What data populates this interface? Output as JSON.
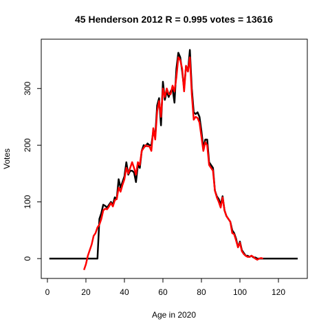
{
  "chart_data": {
    "type": "line",
    "title": "45 Henderson 2012 R = 0.995 votes = 13616",
    "xlabel": "Age in 2020",
    "ylabel": "Votes",
    "xlim": [
      -3.2,
      135
    ],
    "ylim": [
      -35,
      387
    ],
    "xticks": [
      0,
      20,
      40,
      60,
      80,
      100,
      120
    ],
    "yticks": [
      0,
      100,
      200,
      300
    ],
    "series": [
      {
        "color": "#000000",
        "x": [
          1,
          2,
          3,
          4,
          5,
          6,
          7,
          8,
          9,
          10,
          11,
          12,
          13,
          14,
          15,
          16,
          17,
          18,
          19,
          20,
          21,
          22,
          23,
          24,
          25,
          26,
          27,
          28,
          29,
          30,
          31,
          32,
          33,
          34,
          35,
          36,
          37,
          38,
          39,
          40,
          41,
          42,
          43,
          44,
          45,
          46,
          47,
          48,
          49,
          50,
          51,
          52,
          53,
          54,
          55,
          56,
          57,
          58,
          59,
          60,
          61,
          62,
          63,
          64,
          65,
          66,
          67,
          68,
          69,
          70,
          71,
          72,
          73,
          74,
          75,
          76,
          77,
          78,
          79,
          80,
          81,
          82,
          83,
          84,
          85,
          86,
          87,
          88,
          89,
          90,
          91,
          92,
          93,
          94,
          95,
          96,
          97,
          98,
          99,
          100,
          101,
          102,
          103,
          104,
          105,
          106,
          107,
          108,
          109,
          110,
          111,
          112,
          113,
          114,
          115,
          116,
          117,
          118,
          119,
          120,
          121,
          122,
          123,
          124,
          125,
          126,
          127,
          128,
          129,
          130
        ],
        "values": [
          0,
          0,
          0,
          0,
          0,
          0,
          0,
          0,
          0,
          0,
          0,
          0,
          0,
          0,
          0,
          0,
          0,
          0,
          0,
          0,
          0,
          0,
          0,
          0,
          0,
          0,
          70,
          80,
          95,
          93,
          90,
          95,
          100,
          95,
          108,
          105,
          140,
          125,
          135,
          145,
          170,
          148,
          155,
          155,
          152,
          135,
          165,
          160,
          190,
          200,
          198,
          203,
          200,
          200,
          225,
          215,
          270,
          283,
          235,
          312,
          280,
          295,
          285,
          295,
          300,
          275,
          335,
          363,
          355,
          330,
          300,
          340,
          330,
          368,
          300,
          258,
          255,
          258,
          250,
          225,
          195,
          210,
          210,
          170,
          165,
          160,
          120,
          110,
          105,
          95,
          110,
          85,
          75,
          70,
          65,
          50,
          45,
          35,
          20,
          30,
          15,
          10,
          5,
          5,
          3,
          5,
          2,
          2,
          0,
          0,
          0,
          0,
          0,
          0,
          0,
          0,
          0,
          0,
          0,
          0,
          0,
          0,
          0,
          0,
          0,
          0,
          0,
          0,
          0,
          0
        ]
      },
      {
        "color": "#ff0000",
        "x": [
          19,
          20,
          21,
          22,
          23,
          24,
          25,
          26,
          27,
          28,
          29,
          30,
          31,
          32,
          33,
          34,
          35,
          36,
          37,
          38,
          39,
          40,
          41,
          42,
          43,
          44,
          45,
          46,
          47,
          48,
          49,
          50,
          51,
          52,
          53,
          54,
          55,
          56,
          57,
          58,
          59,
          60,
          61,
          62,
          63,
          64,
          65,
          66,
          67,
          68,
          69,
          70,
          71,
          72,
          73,
          74,
          75,
          76,
          77,
          78,
          79,
          80,
          81,
          82,
          83,
          84,
          85,
          86,
          87,
          88,
          89,
          90,
          91,
          92,
          93,
          94,
          95,
          96,
          97,
          98,
          99,
          100,
          101,
          102,
          103,
          104,
          105,
          106,
          107,
          108,
          109,
          110,
          111,
          112
        ],
        "values": [
          -20,
          -10,
          5,
          15,
          25,
          40,
          45,
          55,
          60,
          70,
          85,
          88,
          87,
          92,
          98,
          92,
          103,
          105,
          125,
          118,
          130,
          140,
          160,
          150,
          160,
          170,
          160,
          148,
          170,
          165,
          190,
          195,
          200,
          198,
          198,
          190,
          230,
          210,
          260,
          278,
          250,
          300,
          285,
          300,
          290,
          290,
          305,
          295,
          320,
          355,
          350,
          335,
          295,
          340,
          330,
          355,
          290,
          245,
          250,
          248,
          240,
          215,
          190,
          205,
          200,
          165,
          160,
          155,
          120,
          108,
          100,
          90,
          108,
          85,
          75,
          70,
          65,
          45,
          43,
          32,
          20,
          28,
          13,
          8,
          5,
          3,
          3,
          5,
          3,
          0,
          -2,
          0,
          1,
          0
        ]
      }
    ]
  }
}
